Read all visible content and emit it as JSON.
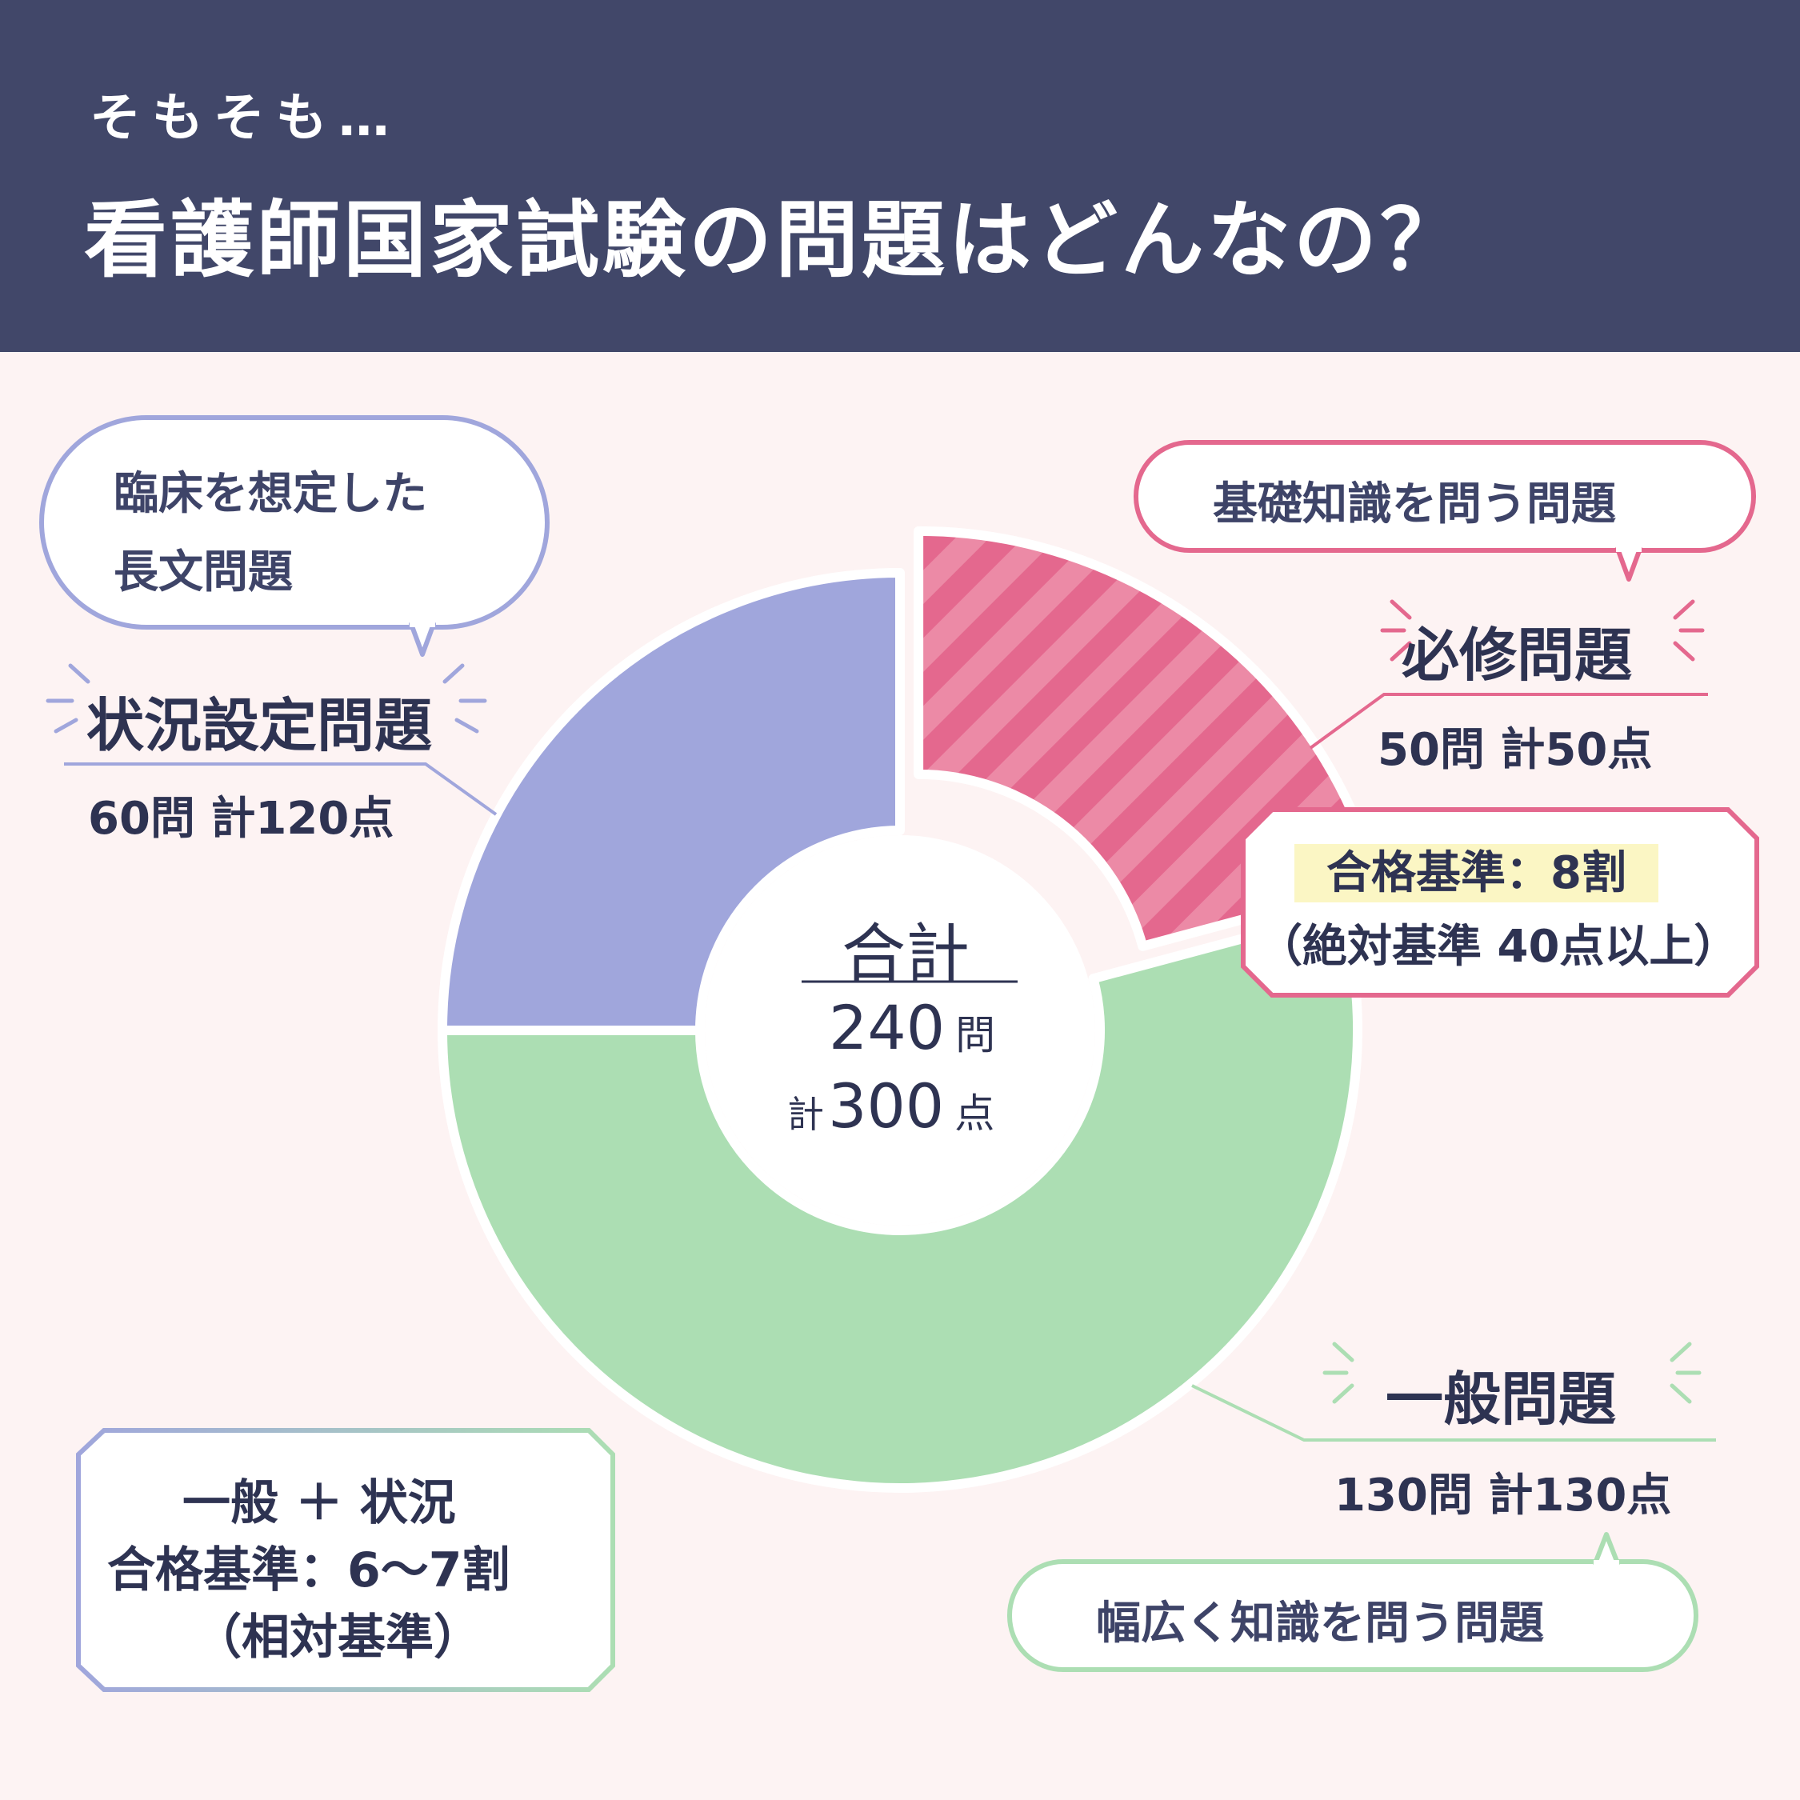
{
  "header": {
    "subtitle": "そもそも…",
    "title": "看護師国家試験の問題はどんなの？"
  },
  "colors": {
    "header_bg": "#414769",
    "background": "#fdf3f3",
    "essential": "#e4688e",
    "general": "#acdeb3",
    "situational": "#a0a6dc",
    "highlight": "#fbf6c4"
  },
  "chart_data": {
    "type": "donut",
    "series": [
      {
        "name": "必修問題",
        "questions": 50,
        "points": 50,
        "color": "#e4688e",
        "pattern": "stripes",
        "exploded": true
      },
      {
        "name": "一般問題",
        "questions": 130,
        "points": 130,
        "color": "#acdeb3"
      },
      {
        "name": "状況設定問題",
        "questions": 60,
        "points": 120,
        "color": "#a0a6dc"
      }
    ],
    "total": {
      "label": "合計",
      "questions": "240",
      "questions_unit": "問",
      "points_prefix": "計",
      "points": "300",
      "points_unit": "点"
    }
  },
  "essential": {
    "name": "必修問題",
    "stats": "50問 計50点",
    "bubble": "基礎知識を問う問題",
    "criteria_line1": "合格基準：8割",
    "criteria_line2": "（絶対基準 40点以上）"
  },
  "general": {
    "name": "一般問題",
    "stats": "130問 計130点",
    "bubble": "幅広く知識を問う問題"
  },
  "situational": {
    "name": "状況設定問題",
    "stats": "60問 計120点",
    "bubble_line1": "臨床を想定した",
    "bubble_line2": "長文問題"
  },
  "combined": {
    "line1": "一般 ＋ 状況",
    "line2": "合格基準：6～7割",
    "line3": "（相対基準）"
  }
}
